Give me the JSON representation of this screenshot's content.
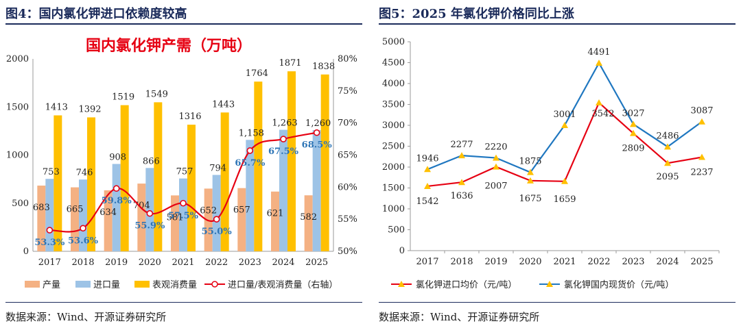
{
  "fig4": {
    "title": "图4：国内氯化钾进口依赖度较高",
    "source": "数据来源：Wind、开源证券研究所"
  },
  "fig5": {
    "title": "图5：2025 年氯化钾价格同比上涨",
    "source": "数据来源：Wind、开源证券研究所"
  },
  "chart_data": [
    {
      "type": "bar",
      "title": "国内氯化钾产需（万吨）",
      "categories": [
        "2017",
        "2018",
        "2019",
        "2020",
        "2021",
        "2022",
        "2023",
        "2024",
        "2025"
      ],
      "ylim": [
        0,
        2000
      ],
      "yticks": [
        0,
        500,
        1000,
        1500,
        2000
      ],
      "y2lim": [
        0.5,
        0.8
      ],
      "y2ticks": [
        "50%",
        "55%",
        "60%",
        "65%",
        "70%",
        "75%",
        "80%"
      ],
      "series": [
        {
          "name": "产量",
          "values": [
            683,
            665,
            634,
            704,
            581,
            652,
            657,
            621,
            582
          ],
          "color": "#f4b183"
        },
        {
          "name": "进口量",
          "values": [
            753,
            746,
            908,
            866,
            757,
            794,
            1158,
            1263,
            1260
          ],
          "color": "#9dc3e6"
        },
        {
          "name": "表观消费量",
          "values": [
            1413,
            1392,
            1519,
            1549,
            1316,
            1443,
            1764,
            1871,
            1838
          ],
          "color": "#ffc000"
        }
      ],
      "line": {
        "name": "进口量/表观消费量（右轴）",
        "values": [
          0.533,
          0.536,
          0.598,
          0.559,
          0.575,
          0.55,
          0.657,
          0.675,
          0.685
        ],
        "labels": [
          "53.3%",
          "53.6%",
          "59.8%",
          "55.9%",
          "57.5%",
          "55.0%",
          "65.7%",
          "67.5%",
          "68.5%"
        ],
        "color": "#e60012"
      },
      "import_labels": [
        "753",
        "746",
        "908",
        "866",
        "757",
        "794",
        "1,158",
        "1,263",
        "1,260"
      ]
    },
    {
      "type": "line",
      "categories": [
        "2017",
        "2018",
        "2019",
        "2020",
        "2021",
        "2022",
        "2023",
        "2024",
        "2025"
      ],
      "ylim": [
        0,
        5000
      ],
      "yticks": [
        0,
        500,
        1000,
        1500,
        2000,
        2500,
        3000,
        3500,
        4000,
        4500,
        5000
      ],
      "series": [
        {
          "name": "氯化钾进口均价（元/吨）",
          "values": [
            1542,
            1636,
            2007,
            1675,
            1659,
            3542,
            2809,
            2095,
            2237
          ],
          "color": "#e60012"
        },
        {
          "name": "氯化钾国内现货价（元/吨）",
          "values": [
            1946,
            2277,
            2220,
            1875,
            3001,
            4491,
            3027,
            2486,
            3087
          ],
          "color": "#1f77c0"
        }
      ]
    }
  ]
}
